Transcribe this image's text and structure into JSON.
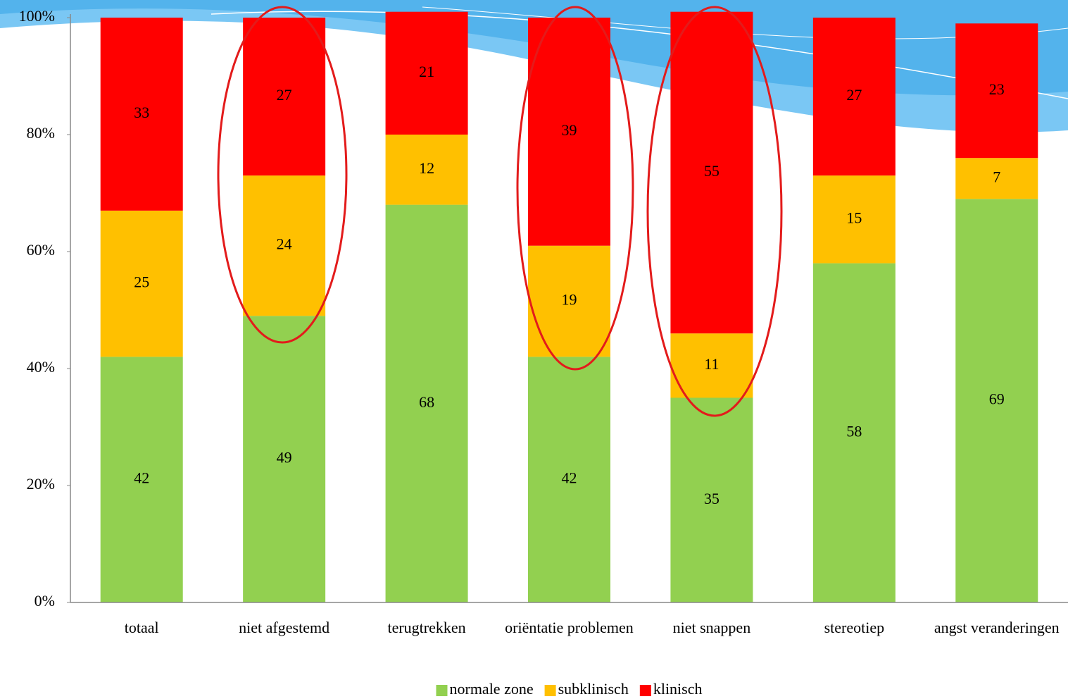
{
  "chart_data": {
    "type": "stacked_bar",
    "categories": [
      "totaal",
      "niet afgestemd",
      "terugtrekken",
      "oriëntatie problemen",
      "niet snappen",
      "stereotiep",
      "angst veranderingen"
    ],
    "series": [
      {
        "name": "normale zone",
        "color": "#92d050",
        "values": [
          42,
          49,
          68,
          42,
          35,
          58,
          69
        ]
      },
      {
        "name": "subklinisch",
        "color": "#ffc000",
        "values": [
          25,
          24,
          12,
          19,
          11,
          15,
          7
        ]
      },
      {
        "name": "klinisch",
        "color": "#ff0000",
        "values": [
          33,
          27,
          21,
          39,
          55,
          27,
          23
        ]
      }
    ],
    "ylim": [
      0,
      100
    ],
    "yticks": [
      {
        "value": 0,
        "label": "0%"
      },
      {
        "value": 20,
        "label": "20%"
      },
      {
        "value": 40,
        "label": "40%"
      },
      {
        "value": 60,
        "label": "60%"
      },
      {
        "value": 80,
        "label": "80%"
      },
      {
        "value": 100,
        "label": "100%"
      }
    ]
  }
}
